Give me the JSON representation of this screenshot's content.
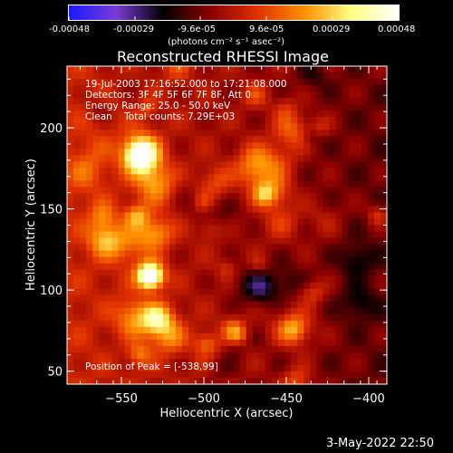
{
  "colorbar": {
    "ticks": [
      "-0.00048",
      "-0.00029",
      "-9.6e-05",
      "9.6e-05",
      "0.00029",
      "0.00048"
    ],
    "unit": "(photons cm⁻² s⁻¹ asec⁻²)",
    "range": [
      -0.00048,
      0.00048
    ],
    "colors": [
      "#1a1aff",
      "#7a3cd8",
      "#000000",
      "#8b0000",
      "#e03000",
      "#ff9000",
      "#ffff80",
      "#ffffff"
    ]
  },
  "chart_data": {
    "type": "heatmap",
    "title": "Reconstructed RHESSI Image",
    "xlabel": "Heliocentric X (arcsec)",
    "ylabel": "Heliocentric Y (arcsec)",
    "xlim": [
      -583,
      -389
    ],
    "ylim": [
      42,
      238
    ],
    "xticks": [
      -550,
      -500,
      -450,
      -400
    ],
    "yticks": [
      50,
      100,
      150,
      200
    ],
    "xtick_labels": [
      "−550",
      "−500",
      "−450",
      "−400"
    ],
    "ytick_labels": [
      "50",
      "100",
      "150",
      "200"
    ],
    "annotations": [
      "19-Jul-2003 17:16:52.000 to 17:21:08.000",
      "Detectors: 3F 4F 5F 6F 7F 8F, Att 0",
      "Energy Range: 25.0 - 50.0 keV",
      "Clean    Total counts: 7.29E+03"
    ],
    "peak_label": "Position of Peak = [-538,99]",
    "peak": [
      -538,
      99
    ]
  },
  "footer": {
    "date": "3-May-2022 22:50"
  }
}
